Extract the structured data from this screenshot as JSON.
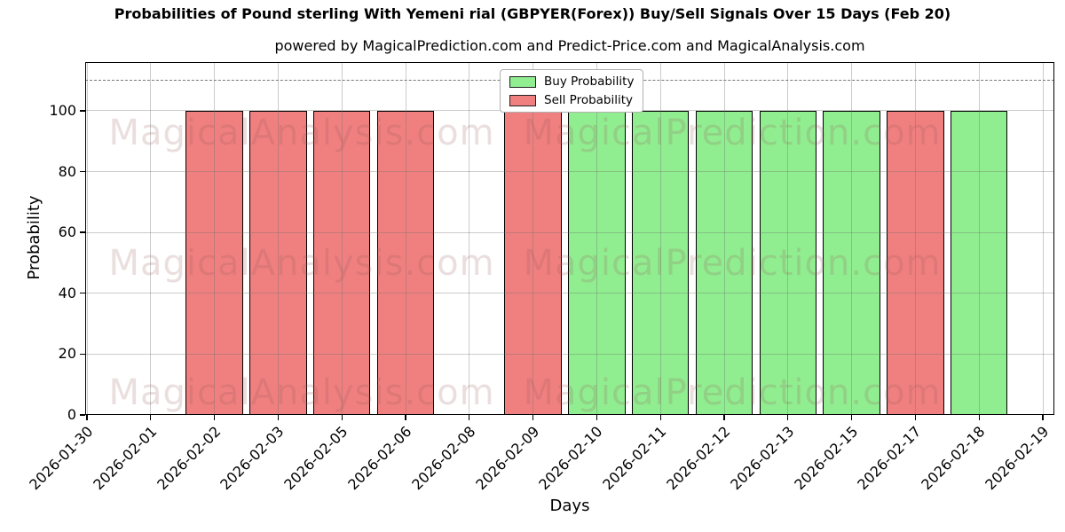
{
  "chart_data": {
    "type": "bar",
    "title": "Probabilities of Pound sterling With Yemeni rial (GBPYER(Forex)) Buy/Sell Signals Over 15 Days (Feb 20)",
    "subtitle": "powered by MagicalPrediction.com and Predict-Price.com and MagicalAnalysis.com",
    "xlabel": "Days",
    "ylabel": "Probability",
    "categories": [
      "2026-01-30",
      "2026-02-01",
      "2026-02-02",
      "2026-02-03",
      "2026-02-05",
      "2026-02-06",
      "2026-02-08",
      "2026-02-09",
      "2026-02-10",
      "2026-02-11",
      "2026-02-12",
      "2026-02-13",
      "2026-02-15",
      "2026-02-17",
      "2026-02-18",
      "2026-02-19"
    ],
    "series": [
      {
        "name": "Buy Probability",
        "color": "#90ee90",
        "values": [
          null,
          null,
          null,
          null,
          null,
          null,
          null,
          null,
          100,
          100,
          100,
          100,
          100,
          null,
          100,
          null
        ]
      },
      {
        "name": "Sell Probability",
        "color": "#f08080",
        "values": [
          null,
          null,
          100,
          100,
          100,
          100,
          null,
          100,
          null,
          null,
          null,
          null,
          null,
          100,
          null,
          null
        ]
      }
    ],
    "ylim": [
      0,
      116
    ],
    "yticks": [
      0,
      20,
      40,
      60,
      80,
      100
    ],
    "threshold_line_y": 110,
    "grid": true,
    "legend_position": "upper center",
    "bar_edgecolor": "#000000"
  },
  "watermarks": {
    "left_text": "MagicalAnalysis.com",
    "right_text": "MagicalPrediction.com"
  }
}
